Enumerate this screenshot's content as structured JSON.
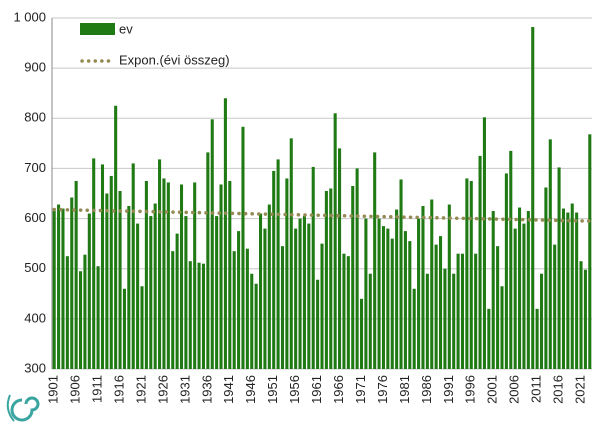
{
  "chart_data": {
    "type": "bar",
    "categories": [
      "1901",
      null,
      null,
      null,
      null,
      "1906",
      null,
      null,
      null,
      null,
      "1911",
      null,
      null,
      null,
      null,
      "1916",
      null,
      null,
      null,
      null,
      "1921",
      null,
      null,
      null,
      null,
      "1926",
      null,
      null,
      null,
      null,
      "1931",
      null,
      null,
      null,
      null,
      "1936",
      null,
      null,
      null,
      null,
      "1941",
      null,
      null,
      null,
      null,
      "1946",
      null,
      null,
      null,
      null,
      "1951",
      null,
      null,
      null,
      null,
      "1956",
      null,
      null,
      null,
      null,
      "1961",
      null,
      null,
      null,
      null,
      "1966",
      null,
      null,
      null,
      null,
      "1971",
      null,
      null,
      null,
      null,
      "1976",
      null,
      null,
      null,
      null,
      "1981",
      null,
      null,
      null,
      null,
      "1986",
      null,
      null,
      null,
      null,
      "1991",
      null,
      null,
      null,
      null,
      "1996",
      null,
      null,
      null,
      null,
      "2001",
      null,
      null,
      null,
      null,
      "2006",
      null,
      null,
      null,
      null,
      "2011",
      null,
      null,
      null,
      null,
      "2016",
      null,
      null,
      null,
      null,
      "2021",
      null,
      null
    ],
    "series": [
      {
        "name": "ev",
        "color": "#1f7a14",
        "values": [
          615,
          628,
          620,
          525,
          642,
          675,
          495,
          528,
          610,
          720,
          505,
          708,
          650,
          685,
          825,
          655,
          460,
          625,
          710,
          590,
          465,
          675,
          605,
          630,
          718,
          680,
          672,
          535,
          570,
          668,
          605,
          515,
          672,
          512,
          510,
          732,
          798,
          605,
          668,
          840,
          675,
          535,
          575,
          783,
          540,
          490,
          470,
          610,
          580,
          628,
          695,
          718,
          545,
          680,
          760,
          580,
          600,
          605,
          590,
          703,
          478,
          550,
          655,
          660,
          810,
          740,
          530,
          525,
          665,
          700,
          440,
          600,
          490,
          732,
          600,
          585,
          580,
          560,
          618,
          678,
          575,
          555,
          460,
          600,
          625,
          490,
          638,
          548,
          565,
          500,
          628,
          490,
          530,
          530,
          680,
          675,
          530,
          725,
          802,
          420,
          615,
          545,
          465,
          690,
          735,
          580,
          622,
          590,
          615,
          982,
          420,
          490,
          662,
          758,
          548,
          702,
          620,
          612,
          630,
          612,
          515,
          498,
          768
        ]
      }
    ],
    "trend": {
      "name": "Expon.(évi összeg)",
      "color": "#948a54",
      "values": [
        618,
        595
      ]
    },
    "ylim": [
      300,
      1000
    ],
    "yticks": [
      300,
      400,
      500,
      600,
      700,
      800,
      900,
      {
        "value": 1000,
        "label": "1 000"
      }
    ],
    "grid": true
  }
}
